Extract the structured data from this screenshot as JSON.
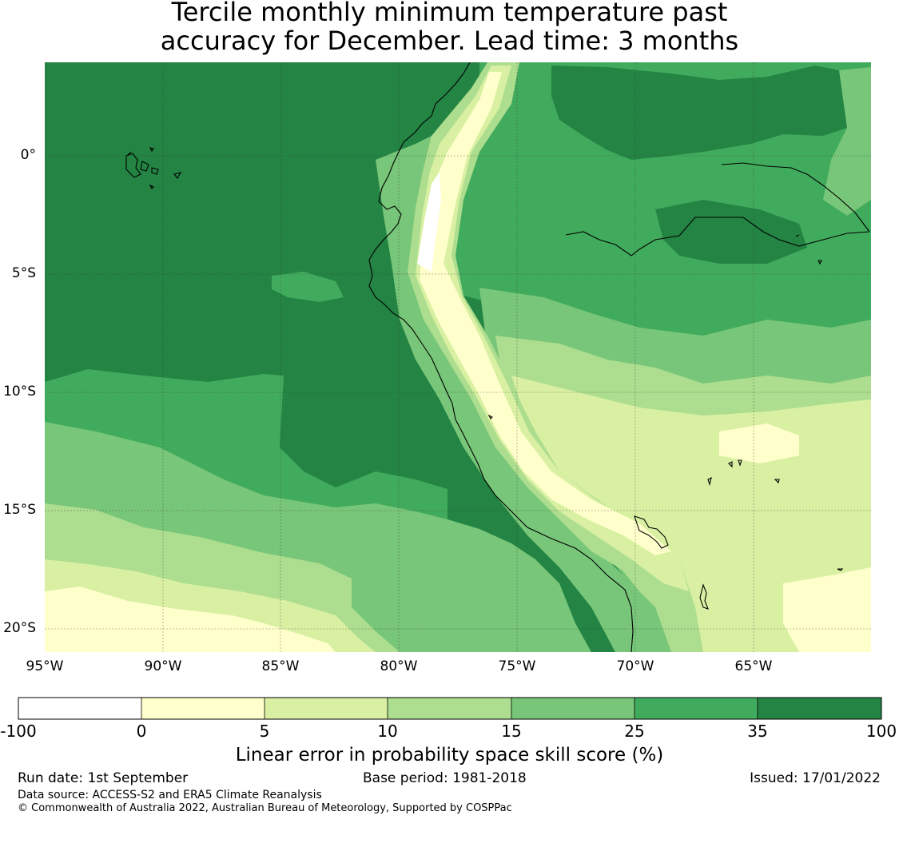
{
  "title": {
    "line1": "Tercile monthly minimum temperature past",
    "line2": "accuracy for December. Lead time: 3 months"
  },
  "map": {
    "lat_labels": [
      "0°",
      "5°S",
      "10°S",
      "15°S",
      "20°S"
    ],
    "lon_labels": [
      "95°W",
      "90°W",
      "85°W",
      "80°W",
      "75°W",
      "70°W",
      "65°W"
    ],
    "colors": {
      "lt0": "#ffffff",
      "0-5": "#ffffcc",
      "5-10": "#d9f0a3",
      "10-15": "#addd8e",
      "15-25": "#78c679",
      "25-35": "#41ab5d",
      "35-100": "#238443",
      "coast": "#000000"
    }
  },
  "colorbar": {
    "ticks": [
      "-100",
      "0",
      "5",
      "10",
      "15",
      "25",
      "35",
      "100"
    ],
    "label": "Linear error in probability space skill score (%)"
  },
  "footer": {
    "run_date": "Run date: 1st September",
    "base_period": "Base period: 1981-2018",
    "issued": "Issued: 17/01/2022",
    "data_source": "Data source: ACCESS-S2 and ERA5 Climate Reanalysis",
    "copyright": "© Commonwealth of Australia 2022, Australian Bureau of Meteorology, Supported by COSPPac"
  }
}
